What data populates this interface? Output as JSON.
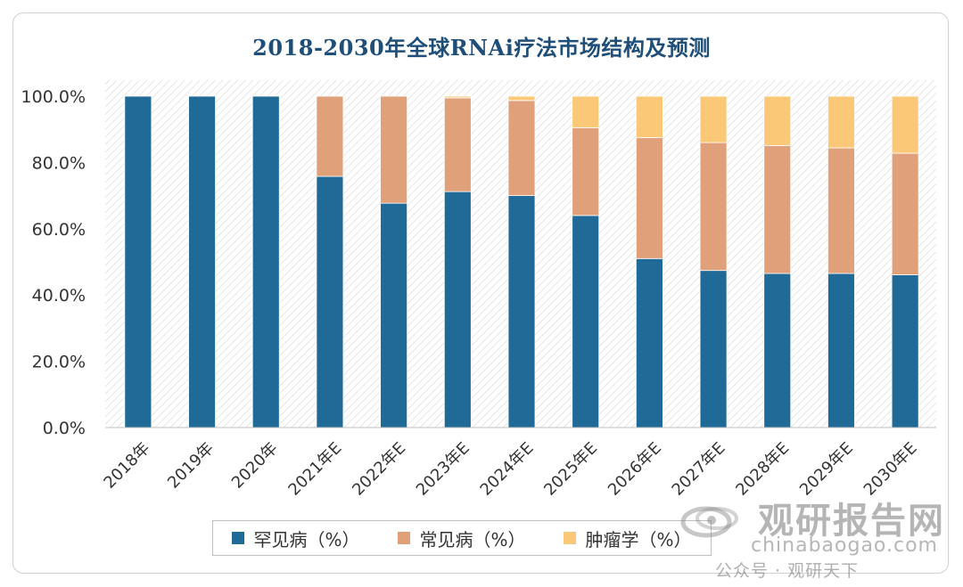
{
  "chart_data": {
    "type": "bar",
    "stacked": true,
    "title": "2018-2030年全球RNAi疗法市场结构及预测",
    "xlabel": "",
    "ylabel": "",
    "ylim": [
      0,
      100
    ],
    "yticks": [
      "0.0%",
      "20.0%",
      "40.0%",
      "60.0%",
      "80.0%",
      "100.0%"
    ],
    "ytick_values": [
      0,
      20,
      40,
      60,
      80,
      100
    ],
    "categories": [
      "2018年",
      "2019年",
      "2020年",
      "2021年E",
      "2022年E",
      "2023年E",
      "2024年E",
      "2025年E",
      "2026年E",
      "2027年E",
      "2028年E",
      "2029年E",
      "2030年E"
    ],
    "series": [
      {
        "name": "罕见病（%）",
        "color": "#1f6a96",
        "values": [
          100,
          100,
          100,
          75.8,
          67.7,
          71.2,
          70.0,
          64.0,
          51.0,
          47.4,
          46.5,
          46.5,
          46.1
        ]
      },
      {
        "name": "常见病（%）",
        "color": "#e0a07a",
        "values": [
          0,
          0,
          0,
          24.2,
          32.3,
          28.3,
          28.7,
          26.5,
          36.5,
          38.6,
          38.6,
          37.9,
          36.7
        ]
      },
      {
        "name": "肿瘤学（%）",
        "color": "#fbc877",
        "values": [
          0,
          0,
          0,
          0,
          0,
          0.5,
          1.3,
          9.5,
          12.5,
          14.0,
          14.9,
          15.6,
          17.2
        ]
      }
    ],
    "legend_position": "bottom",
    "grid": false,
    "background": "hatched"
  },
  "watermark": {
    "brand": "观研报告网",
    "site": "chinabaogao.com",
    "account": "公众号 · 观研天下"
  }
}
